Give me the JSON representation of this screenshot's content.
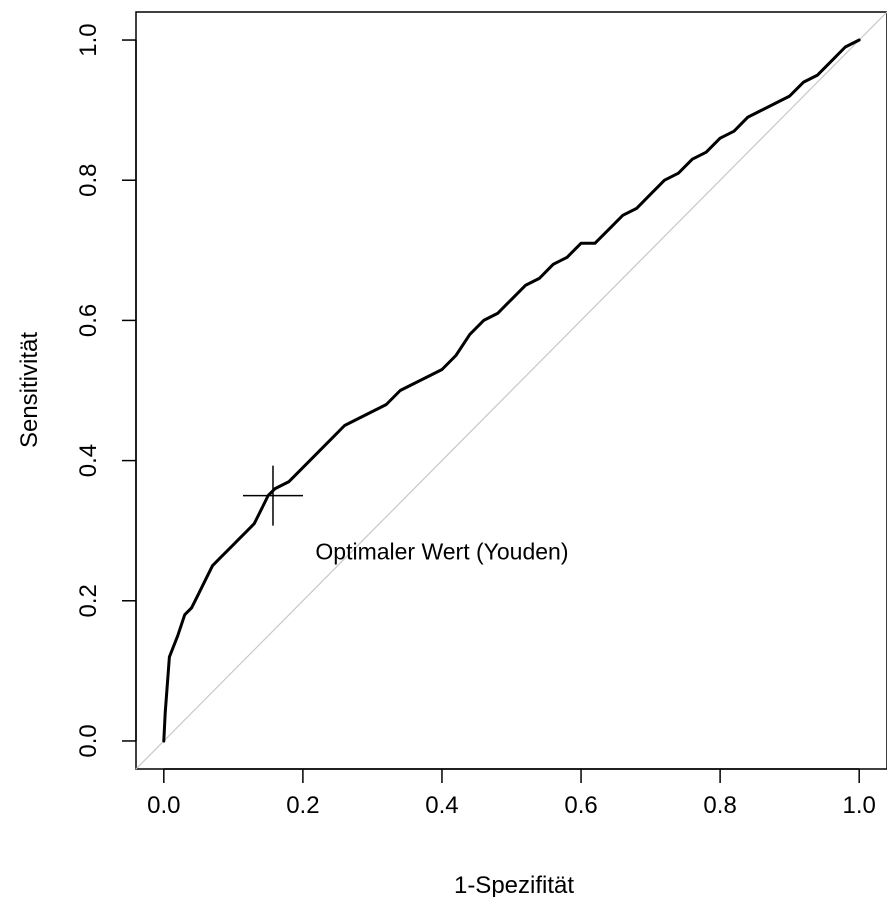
{
  "chart_data": {
    "type": "line",
    "title": "",
    "xlabel": "1-Spezifität",
    "ylabel": "Sensitivität",
    "xlim": [
      -0.04,
      1.04
    ],
    "ylim": [
      -0.04,
      1.04
    ],
    "x_ticks": [
      0.0,
      0.2,
      0.4,
      0.6,
      0.8,
      1.0
    ],
    "x_tick_labels": [
      "0.0",
      "0.2",
      "0.4",
      "0.6",
      "0.8",
      "1.0"
    ],
    "y_ticks": [
      0.0,
      0.2,
      0.4,
      0.6,
      0.8,
      1.0
    ],
    "y_tick_labels": [
      "0.0",
      "0.2",
      "0.4",
      "0.6",
      "0.8",
      "1.0"
    ],
    "grid": false,
    "series": [
      {
        "color": "#000000",
        "x": [
          0.0,
          0.002,
          0.005,
          0.008,
          0.012,
          0.02,
          0.03,
          0.04,
          0.05,
          0.06,
          0.07,
          0.08,
          0.09,
          0.1,
          0.11,
          0.12,
          0.13,
          0.14,
          0.15,
          0.16,
          0.18,
          0.2,
          0.22,
          0.24,
          0.26,
          0.28,
          0.3,
          0.32,
          0.34,
          0.36,
          0.38,
          0.4,
          0.42,
          0.44,
          0.46,
          0.48,
          0.5,
          0.52,
          0.54,
          0.56,
          0.58,
          0.6,
          0.62,
          0.64,
          0.66,
          0.68,
          0.7,
          0.72,
          0.74,
          0.76,
          0.78,
          0.8,
          0.82,
          0.84,
          0.86,
          0.88,
          0.9,
          0.92,
          0.94,
          0.96,
          0.98,
          1.0
        ],
        "y": [
          0.0,
          0.04,
          0.08,
          0.12,
          0.13,
          0.15,
          0.18,
          0.19,
          0.21,
          0.23,
          0.25,
          0.26,
          0.27,
          0.28,
          0.29,
          0.3,
          0.31,
          0.33,
          0.35,
          0.36,
          0.37,
          0.39,
          0.41,
          0.43,
          0.45,
          0.46,
          0.47,
          0.48,
          0.5,
          0.51,
          0.52,
          0.53,
          0.55,
          0.58,
          0.6,
          0.61,
          0.63,
          0.65,
          0.66,
          0.68,
          0.69,
          0.71,
          0.71,
          0.73,
          0.75,
          0.76,
          0.78,
          0.8,
          0.81,
          0.83,
          0.84,
          0.86,
          0.87,
          0.89,
          0.9,
          0.91,
          0.92,
          0.94,
          0.95,
          0.97,
          0.99,
          1.0
        ]
      },
      {
        "color": "#c8c8c8",
        "x": [
          -0.04,
          1.04
        ],
        "y": [
          -0.04,
          1.04
        ]
      }
    ],
    "annotations": [
      {
        "type": "marker",
        "shape": "cross",
        "x": 0.157,
        "y": 0.35
      },
      {
        "type": "text",
        "text": "Optimaler Wert (Youden)",
        "x": 0.4,
        "y": 0.27
      }
    ]
  }
}
